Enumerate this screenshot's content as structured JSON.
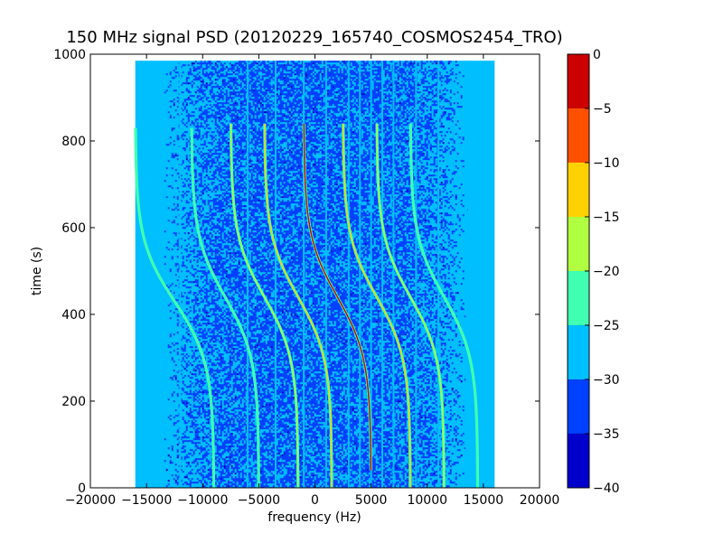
{
  "chart_data": {
    "type": "heatmap",
    "title": "150 MHz signal PSD (20120229_165740_COSMOS2454_TRO)",
    "xlabel": "frequency (Hz)",
    "ylabel": "time (s)",
    "xlim": [
      -20000,
      20000
    ],
    "ylim": [
      0,
      1000
    ],
    "xticks": [
      -20000,
      -15000,
      -10000,
      -5000,
      0,
      5000,
      10000,
      15000,
      20000
    ],
    "xtick_labels": [
      "−20000",
      "−15000",
      "−10000",
      "−5000",
      "0",
      "5000",
      "10000",
      "15000",
      "20000"
    ],
    "yticks": [
      0,
      200,
      400,
      600,
      800,
      1000
    ],
    "ytick_labels": [
      "0",
      "200",
      "400",
      "600",
      "800",
      "1000"
    ],
    "data_extent": {
      "freq": [
        -16000,
        16000
      ],
      "time": [
        0,
        985
      ]
    },
    "background_level_db": -27.5,
    "noise_levels_db": [
      -27.5,
      -32.5,
      -37.5
    ],
    "vertical_lines_hz": [
      -12000,
      -6000,
      -3500,
      -1000,
      1000,
      3000,
      4000,
      5000,
      6000,
      7000,
      9000,
      11000,
      13500
    ],
    "doppler_tracks": [
      {
        "center_hz": -12500,
        "center_time_s": 430,
        "amplitude_hz": 3500,
        "time_span_s": [
          0,
          830
        ],
        "peak_db": -22.5
      },
      {
        "center_hz": -8000,
        "center_time_s": 440,
        "amplitude_hz": 3000,
        "time_span_s": [
          0,
          830
        ],
        "peak_db": -22.5
      },
      {
        "center_hz": -4500,
        "center_time_s": 440,
        "amplitude_hz": 3000,
        "time_span_s": [
          0,
          840
        ],
        "peak_db": -17.5
      },
      {
        "center_hz": -1500,
        "center_time_s": 440,
        "amplitude_hz": 3000,
        "time_span_s": [
          0,
          840
        ],
        "peak_db": -12.5
      },
      {
        "center_hz": 2000,
        "center_time_s": 440,
        "amplitude_hz": 3000,
        "time_span_s": [
          40,
          840
        ],
        "peak_db": -2.5
      },
      {
        "center_hz": 5500,
        "center_time_s": 440,
        "amplitude_hz": 3000,
        "time_span_s": [
          0,
          840
        ],
        "peak_db": -12.5
      },
      {
        "center_hz": 8500,
        "center_time_s": 440,
        "amplitude_hz": 3000,
        "time_span_s": [
          0,
          840
        ],
        "peak_db": -17.5
      },
      {
        "center_hz": 11500,
        "center_time_s": 440,
        "amplitude_hz": 3000,
        "time_span_s": [
          0,
          840
        ],
        "peak_db": -22.5
      }
    ],
    "colorbar": {
      "range": [
        -40,
        0
      ],
      "tick_values": [
        0,
        -5,
        -10,
        -15,
        -20,
        -25,
        -30,
        -35,
        -40
      ],
      "tick_labels": [
        "0",
        "−5",
        "−10",
        "−15",
        "−20",
        "−25",
        "−30",
        "−35",
        "−40"
      ],
      "bands": [
        {
          "from": -40,
          "to": -35,
          "color": "#0000cc"
        },
        {
          "from": -35,
          "to": -30,
          "color": "#0040ff"
        },
        {
          "from": -30,
          "to": -25,
          "color": "#00bfff"
        },
        {
          "from": -25,
          "to": -20,
          "color": "#40ffb0"
        },
        {
          "from": -20,
          "to": -15,
          "color": "#b0ff40"
        },
        {
          "from": -15,
          "to": -10,
          "color": "#ffd000"
        },
        {
          "from": -10,
          "to": -5,
          "color": "#ff5000"
        },
        {
          "from": -5,
          "to": 0,
          "color": "#cc0000"
        }
      ]
    }
  }
}
